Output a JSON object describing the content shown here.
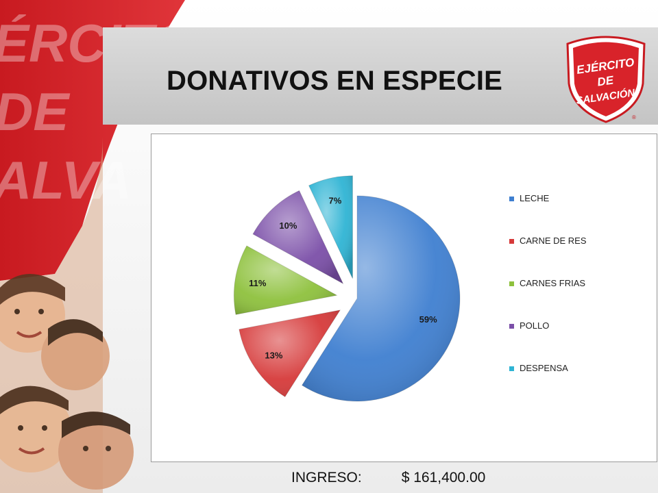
{
  "slide": {
    "title": "DONATIVOS EN ESPECIE",
    "logo_text": [
      "EJÉRCITO",
      "DE",
      "SALVACIÓN"
    ],
    "logo_mark": "®",
    "banner_text": [
      "ÉRCITO",
      "DE",
      "ALVA"
    ],
    "footer": {
      "label": "INGRESO:",
      "value": "$ 161,400.00"
    }
  },
  "colors": {
    "red": "#d8232a",
    "leche": "#3f7fd0",
    "carne_de_res": "#d63a3a",
    "carnes_frias": "#8ec13d",
    "pollo": "#7b4fa8",
    "despensa": "#2fb4d4"
  },
  "chart_data": {
    "type": "pie",
    "title": "",
    "exploded": true,
    "legend_position": "right",
    "slices": [
      {
        "name": "LECHE",
        "value": 59,
        "label": "59%",
        "color": "#3f7fd0"
      },
      {
        "name": "CARNE DE RES",
        "value": 13,
        "label": "13%",
        "color": "#d63a3a"
      },
      {
        "name": "CARNES FRIAS",
        "value": 11,
        "label": "11%",
        "color": "#8ec13d"
      },
      {
        "name": "POLLO",
        "value": 10,
        "label": "10%",
        "color": "#7b4fa8"
      },
      {
        "name": "DESPENSA",
        "value": 7,
        "label": "7%",
        "color": "#2fb4d4"
      }
    ]
  }
}
